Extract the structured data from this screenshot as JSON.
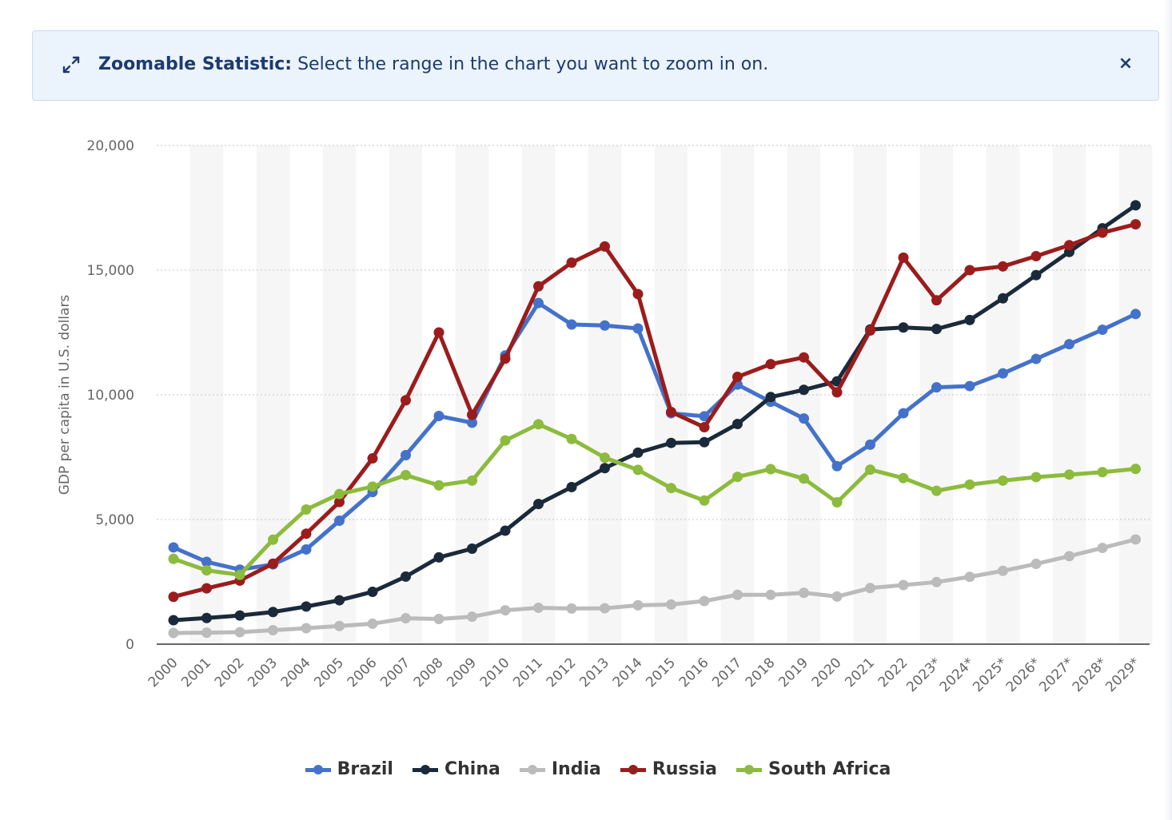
{
  "banner": {
    "icon": "expand-arrows-icon",
    "title": "Zoomable Statistic:",
    "message": "Select the range in the chart you want to zoom in on.",
    "close_icon": "×"
  },
  "chart_data": {
    "type": "line",
    "ylabel": "GDP per capita in U.S. dollars",
    "xlabel": "",
    "ylim": [
      0,
      20000
    ],
    "yticks": [
      0,
      5000,
      10000,
      15000,
      20000
    ],
    "ytick_labels": [
      "0",
      "5,000",
      "10,000",
      "15,000",
      "20,000"
    ],
    "grid": "horizontal dotted",
    "legend_position": "bottom",
    "categories": [
      "2000",
      "2001",
      "2002",
      "2003",
      "2004",
      "2005",
      "2006",
      "2007",
      "2008",
      "2009",
      "2010",
      "2011",
      "2012",
      "2013",
      "2014",
      "2015",
      "2016",
      "2017",
      "2018",
      "2019",
      "2020",
      "2021",
      "2022",
      "2023*",
      "2024*",
      "2025*",
      "2026*",
      "2027*",
      "2028*",
      "2029*"
    ],
    "series": [
      {
        "name": "Brazil",
        "color": "#4472ca",
        "values": [
          3880,
          3300,
          2990,
          3200,
          3800,
          4950,
          6100,
          7580,
          9150,
          8880,
          11580,
          13680,
          12820,
          12780,
          12660,
          9260,
          9140,
          10410,
          9720,
          9050,
          7140,
          8000,
          9260,
          10300,
          10350,
          10860,
          11440,
          12030,
          12610,
          13240
        ]
      },
      {
        "name": "China",
        "color": "#1a2a3a",
        "values": [
          960,
          1050,
          1150,
          1290,
          1510,
          1760,
          2100,
          2710,
          3480,
          3830,
          4550,
          5620,
          6300,
          7060,
          7680,
          8070,
          8100,
          8830,
          9910,
          10200,
          10540,
          12620,
          12700,
          12640,
          13000,
          13870,
          14800,
          15730,
          16680,
          17600
        ]
      },
      {
        "name": "India",
        "color": "#bbbbbb",
        "values": [
          450,
          460,
          480,
          560,
          640,
          730,
          820,
          1040,
          1010,
          1100,
          1360,
          1460,
          1430,
          1440,
          1560,
          1590,
          1730,
          1980,
          1980,
          2060,
          1910,
          2250,
          2370,
          2490,
          2700,
          2940,
          3220,
          3530,
          3860,
          4200
        ]
      },
      {
        "name": "Russia",
        "color": "#9b1c1c",
        "values": [
          1900,
          2240,
          2550,
          3230,
          4430,
          5700,
          7450,
          9780,
          12500,
          9200,
          11450,
          14350,
          15300,
          15950,
          14040,
          9310,
          8700,
          10720,
          11230,
          11500,
          10100,
          12580,
          15500,
          13790,
          15000,
          15150,
          15560,
          16000,
          16500,
          16840
        ]
      },
      {
        "name": "South Africa",
        "color": "#8cbb3d",
        "values": [
          3420,
          2960,
          2780,
          4190,
          5400,
          6020,
          6320,
          6780,
          6370,
          6560,
          8170,
          8820,
          8230,
          7480,
          6990,
          6260,
          5760,
          6710,
          7020,
          6640,
          5690,
          7000,
          6660,
          6150,
          6400,
          6560,
          6700,
          6800,
          6900,
          7030
        ]
      }
    ]
  }
}
